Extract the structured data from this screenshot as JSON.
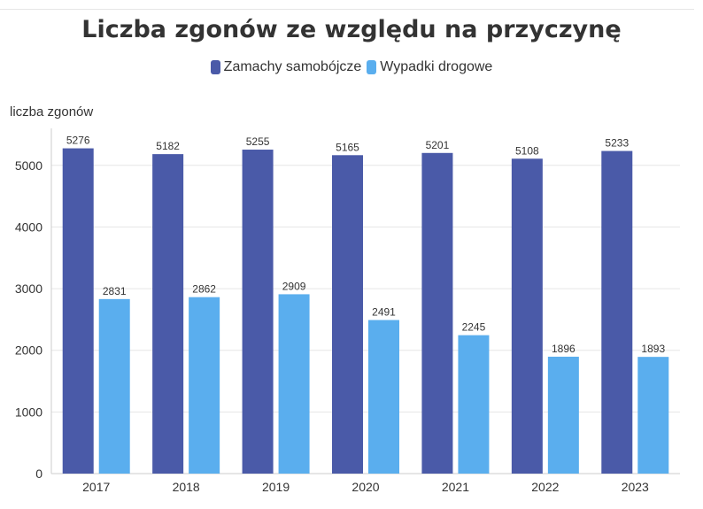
{
  "chart_data": {
    "type": "bar",
    "title": "Liczba zgonów ze względu na przyczynę",
    "ylabel": "liczba zgonów",
    "xlabel": "",
    "categories": [
      "2017",
      "2018",
      "2019",
      "2020",
      "2021",
      "2022",
      "2023"
    ],
    "series": [
      {
        "name": "Zamachy samobójcze",
        "color": "#4a5aa8",
        "values": [
          5276,
          5182,
          5255,
          5165,
          5201,
          5108,
          5233
        ]
      },
      {
        "name": "Wypadki drogowe",
        "color": "#5aaeee",
        "values": [
          2831,
          2862,
          2909,
          2491,
          2245,
          1896,
          1893
        ]
      }
    ],
    "yticks": [
      0,
      1000,
      2000,
      3000,
      4000,
      5000
    ],
    "ylim": [
      0,
      5600
    ],
    "grid": true,
    "legend_position": "top-center"
  }
}
